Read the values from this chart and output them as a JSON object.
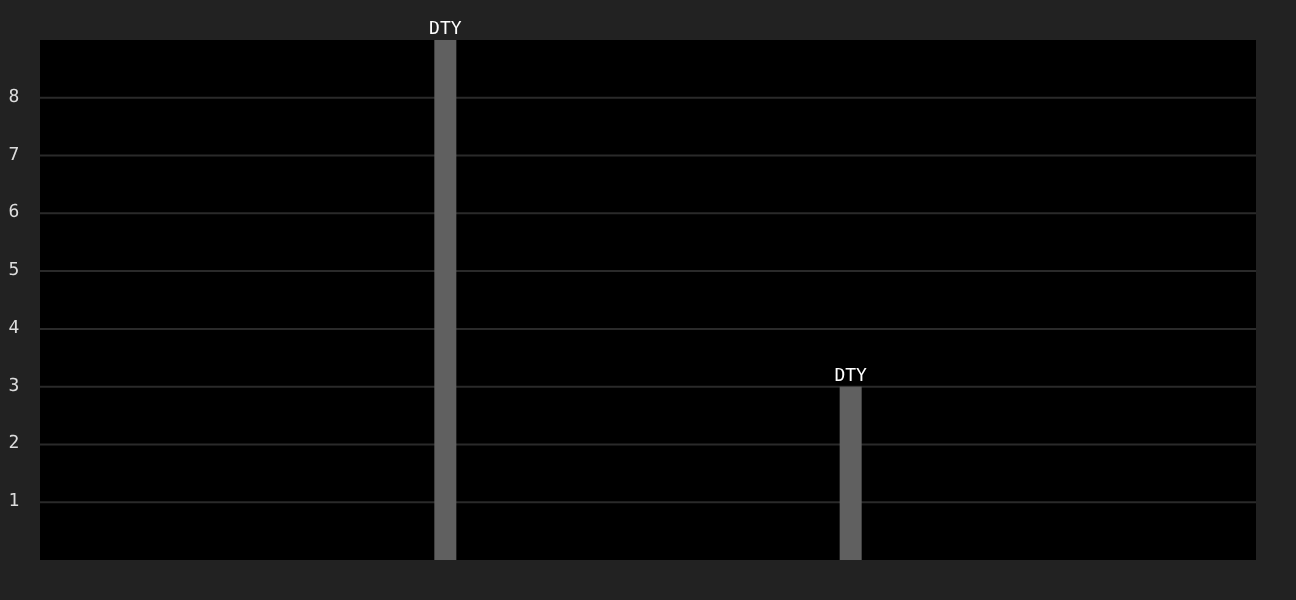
{
  "chart_data": {
    "type": "bar",
    "categories": [
      null,
      null
    ],
    "values": [
      9,
      3
    ],
    "value_labels": [
      "DTY",
      "DTY"
    ],
    "color": "#606060",
    "ylim": [
      0,
      9
    ],
    "yticks": [
      1,
      2,
      3,
      4,
      5,
      6,
      7,
      8
    ],
    "grid": "y",
    "tick_labels": "y"
  }
}
